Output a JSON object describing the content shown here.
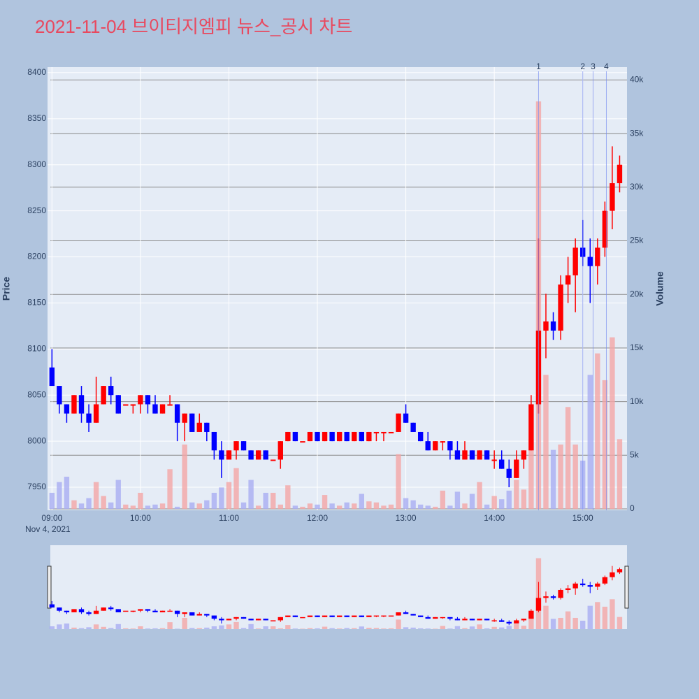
{
  "chart_data": {
    "type": "candlestick",
    "title": "2021-11-04 브이티지엠피 뉴스_공시 차트",
    "ylabel": "Price",
    "y2label": "Volume",
    "date_label": "Nov 4, 2021",
    "x": [
      "09:00",
      "09:05",
      "09:10",
      "09:15",
      "09:20",
      "09:25",
      "09:30",
      "09:35",
      "09:40",
      "09:45",
      "09:50",
      "09:55",
      "10:00",
      "10:05",
      "10:10",
      "10:15",
      "10:20",
      "10:25",
      "10:30",
      "10:35",
      "10:40",
      "10:45",
      "10:50",
      "10:55",
      "11:00",
      "11:05",
      "11:10",
      "11:15",
      "11:20",
      "11:25",
      "11:30",
      "11:35",
      "11:40",
      "11:45",
      "11:50",
      "11:55",
      "12:00",
      "12:05",
      "12:10",
      "12:15",
      "12:20",
      "12:25",
      "12:30",
      "12:35",
      "12:40",
      "12:45",
      "12:50",
      "12:55",
      "13:00",
      "13:05",
      "13:10",
      "13:15",
      "13:20",
      "13:25",
      "13:30",
      "13:35",
      "13:40",
      "13:45",
      "13:50",
      "13:55",
      "14:00",
      "14:05",
      "14:10",
      "14:15",
      "14:20",
      "14:25",
      "14:30",
      "14:35",
      "14:40",
      "14:45",
      "14:50",
      "14:55",
      "15:00",
      "15:05",
      "15:10",
      "15:15",
      "15:20",
      "15:25"
    ],
    "open": [
      8080,
      8060,
      8040,
      8030,
      8050,
      8030,
      8020,
      8040,
      8060,
      8050,
      8040,
      8040,
      8040,
      8050,
      8040,
      8030,
      8040,
      8040,
      8020,
      8030,
      8010,
      8020,
      8010,
      7990,
      7980,
      7990,
      8000,
      7990,
      7980,
      7990,
      7980,
      7980,
      8000,
      8010,
      8000,
      8000,
      8010,
      8000,
      8010,
      8000,
      8010,
      8000,
      8010,
      8000,
      8010,
      8010,
      8010,
      8010,
      8030,
      8020,
      8010,
      8000,
      7990,
      8000,
      8000,
      7990,
      7980,
      7990,
      7980,
      7990,
      7980,
      7980,
      7970,
      7960,
      7980,
      7990,
      8040,
      8120,
      8130,
      8120,
      8170,
      8180,
      8210,
      8200,
      8190,
      8210,
      8250,
      8280
    ],
    "high": [
      8100,
      8060,
      8040,
      8050,
      8060,
      8040,
      8070,
      8060,
      8070,
      8050,
      8040,
      8040,
      8050,
      8050,
      8050,
      8040,
      8050,
      8040,
      8030,
      8030,
      8030,
      8020,
      8010,
      8000,
      7990,
      8000,
      8000,
      7990,
      7990,
      7990,
      7980,
      8000,
      8010,
      8010,
      8000,
      8010,
      8010,
      8010,
      8010,
      8010,
      8010,
      8010,
      8010,
      8010,
      8010,
      8010,
      8010,
      8030,
      8040,
      8020,
      8010,
      8010,
      8000,
      8000,
      8000,
      8000,
      8000,
      7990,
      7990,
      7990,
      7990,
      7990,
      7980,
      7990,
      7990,
      8050,
      8220,
      8160,
      8140,
      8180,
      8200,
      8220,
      8240,
      8220,
      8220,
      8260,
      8320,
      8310
    ],
    "low": [
      8060,
      8030,
      8020,
      8030,
      8020,
      8010,
      8020,
      8040,
      8040,
      8030,
      8040,
      8030,
      8030,
      8030,
      8030,
      8030,
      8040,
      8000,
      8000,
      8010,
      8010,
      8000,
      7980,
      7960,
      7980,
      7980,
      7990,
      7980,
      7980,
      7980,
      7980,
      7970,
      8000,
      8000,
      8000,
      8000,
      8000,
      8000,
      8000,
      8000,
      8000,
      8000,
      8000,
      8000,
      8000,
      8000,
      8010,
      8010,
      8020,
      8010,
      8000,
      7990,
      7990,
      7990,
      7980,
      7980,
      7980,
      7980,
      7980,
      7980,
      7970,
      7970,
      7950,
      7960,
      7970,
      7990,
      8030,
      8090,
      8110,
      8110,
      8150,
      8140,
      8190,
      8150,
      8170,
      8200,
      8230,
      8270
    ],
    "close": [
      8060,
      8040,
      8030,
      8050,
      8030,
      8020,
      8040,
      8060,
      8050,
      8030,
      8040,
      8040,
      8050,
      8040,
      8030,
      8040,
      8040,
      8020,
      8030,
      8010,
      8020,
      8010,
      7990,
      7980,
      7990,
      8000,
      7990,
      7980,
      7990,
      7980,
      7980,
      8000,
      8010,
      8000,
      8000,
      8010,
      8000,
      8010,
      8000,
      8010,
      8000,
      8010,
      8000,
      8010,
      8010,
      8010,
      8010,
      8030,
      8020,
      8010,
      8000,
      7990,
      8000,
      8000,
      7990,
      7980,
      7990,
      7980,
      7990,
      7980,
      7980,
      7970,
      7960,
      7980,
      7990,
      8040,
      8120,
      8130,
      8120,
      8170,
      8180,
      8210,
      8200,
      8190,
      8210,
      8250,
      8280,
      8300
    ],
    "volume": [
      1500,
      2500,
      3000,
      800,
      500,
      1000,
      2500,
      1200,
      600,
      2700,
      400,
      300,
      1500,
      300,
      400,
      500,
      3700,
      200,
      6000,
      600,
      500,
      800,
      1500,
      2000,
      2500,
      3800,
      600,
      2700,
      300,
      1500,
      1500,
      400,
      2200,
      300,
      200,
      500,
      400,
      1300,
      500,
      300,
      600,
      500,
      1400,
      700,
      600,
      300,
      400,
      5100,
      1000,
      800,
      400,
      300,
      200,
      1700,
      300,
      1600,
      500,
      1400,
      2500,
      400,
      1200,
      900,
      1700,
      2700,
      1800,
      6500,
      38000,
      12500,
      5500,
      6000,
      9500,
      6000,
      4500,
      12500,
      14500,
      12000,
      16000,
      6500
    ],
    "up_color": "#ff0000",
    "down_color": "#0000ff",
    "volume_up_color": "#f4a6a6",
    "volume_down_color": "#a9aef2",
    "xlim": [
      "08:57",
      "15:30"
    ],
    "xticks": [
      "09:00",
      "10:00",
      "11:00",
      "12:00",
      "13:00",
      "14:00",
      "15:00"
    ],
    "ylim": [
      7925,
      8406
    ],
    "yticks": [
      7950,
      8000,
      8050,
      8100,
      8150,
      8200,
      8250,
      8300,
      8350,
      8400
    ],
    "y2lim": [
      0,
      41200
    ],
    "y2ticks": [
      0,
      {
        "value": 5000,
        "label": "5k"
      },
      {
        "value": 10000,
        "label": "10k"
      },
      {
        "value": 15000,
        "label": "15k"
      },
      {
        "value": 20000,
        "label": "20k"
      },
      {
        "value": 25000,
        "label": "25k"
      },
      {
        "value": 30000,
        "label": "30k"
      },
      {
        "value": 35000,
        "label": "35k"
      },
      {
        "value": 40000,
        "label": "40k"
      }
    ],
    "news": [
      {
        "time": "14:30",
        "label": "1"
      },
      {
        "time": "15:00",
        "label": "2"
      },
      {
        "time": "15:07",
        "label": "3"
      },
      {
        "time": "15:16",
        "label": "4"
      }
    ],
    "grid": true
  }
}
